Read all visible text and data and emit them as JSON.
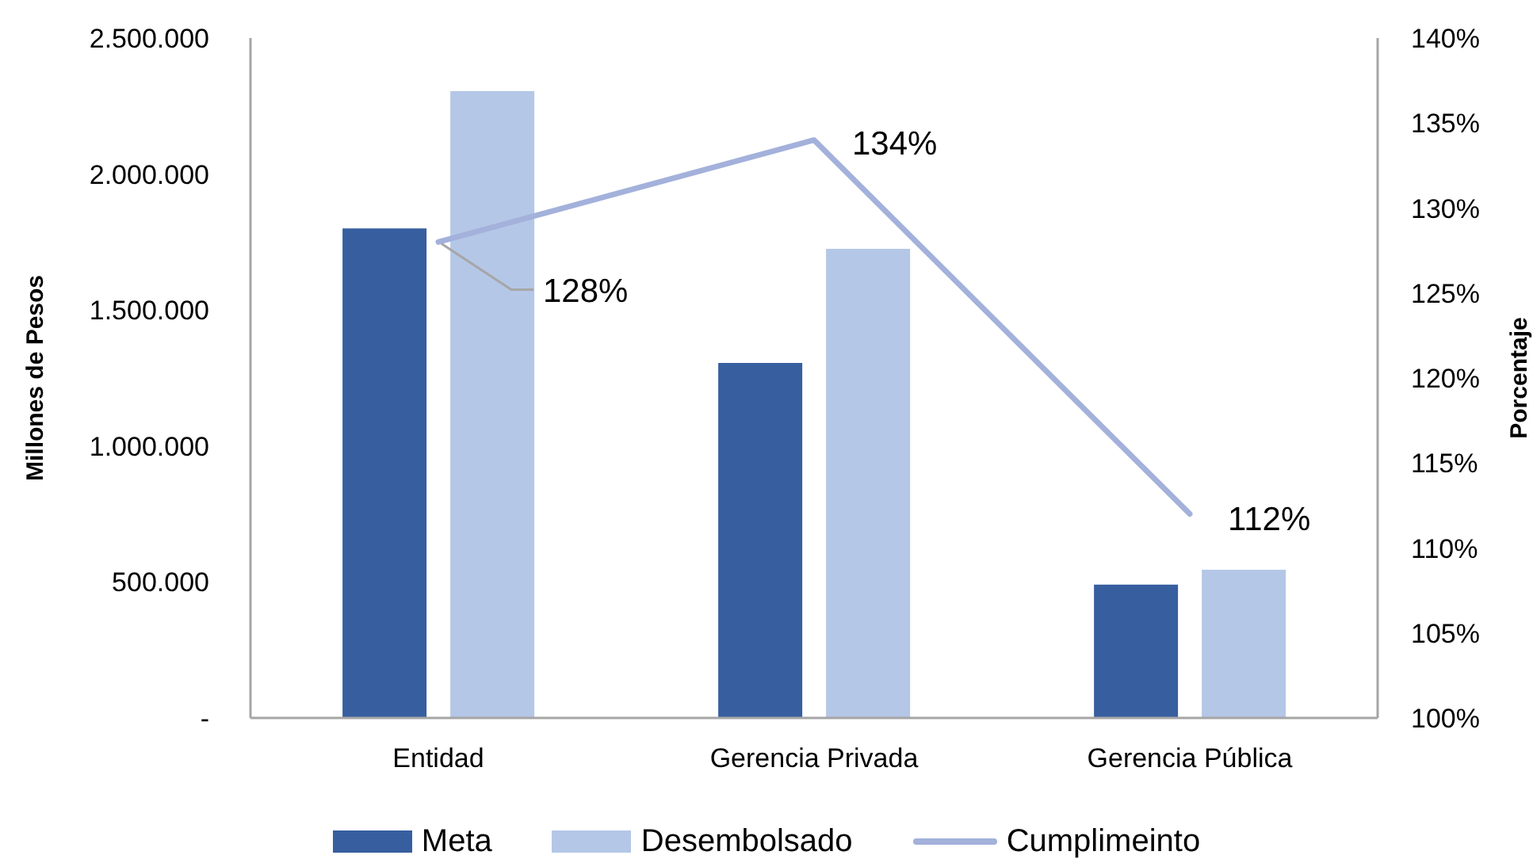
{
  "chart_data": {
    "type": "bar",
    "categories": [
      "Entidad",
      "Gerencia Privada",
      "Gerencia Pública"
    ],
    "ylabel": "Millones de Pesos",
    "y2label": "Porcentaje",
    "series": [
      {
        "name": "Meta",
        "color": "#375e9f",
        "values": [
          1800000,
          1305000,
          490000
        ]
      },
      {
        "name": "Desembolsado",
        "color": "#b4c7e7",
        "values": [
          2305000,
          1725000,
          545000
        ]
      },
      {
        "name": "Cumplimeinto",
        "type": "line",
        "axis": "y2",
        "color": "#a3b1db",
        "values": [
          128,
          134,
          112
        ],
        "value_labels": [
          "128%",
          "134%",
          "112%"
        ]
      }
    ],
    "ylim": [
      0,
      2500000
    ],
    "yticks": [
      {
        "value": 0,
        "label": "-"
      },
      {
        "value": 500000,
        "label": "500.000"
      },
      {
        "value": 1000000,
        "label": "1.000.000"
      },
      {
        "value": 1500000,
        "label": "1.500.000"
      },
      {
        "value": 2000000,
        "label": "2.000.000"
      },
      {
        "value": 2500000,
        "label": "2.500.000"
      }
    ],
    "y2lim": [
      100,
      140
    ],
    "y2ticks": [
      {
        "value": 100,
        "label": "100%"
      },
      {
        "value": 105,
        "label": "105%"
      },
      {
        "value": 110,
        "label": "110%"
      },
      {
        "value": 115,
        "label": "115%"
      },
      {
        "value": 120,
        "label": "120%"
      },
      {
        "value": 125,
        "label": "125%"
      },
      {
        "value": 130,
        "label": "130%"
      },
      {
        "value": 135,
        "label": "135%"
      },
      {
        "value": 140,
        "label": "140%"
      }
    ],
    "legend": "bottom",
    "marker": "none",
    "line_style": "solid"
  }
}
